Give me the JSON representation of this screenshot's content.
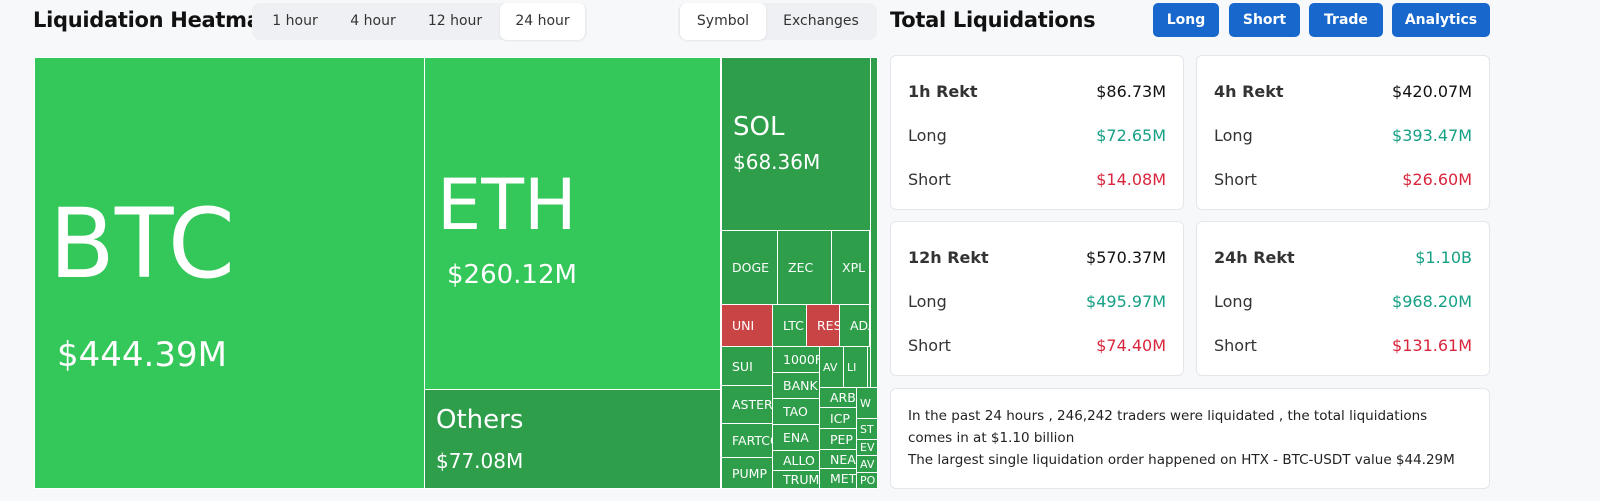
{
  "header": {
    "title": "Liquidation Heatmap",
    "time_tabs": [
      "1 hour",
      "4 hour",
      "12 hour",
      "24 hour"
    ],
    "view_tabs": [
      "Symbol",
      "Exchanges"
    ]
  },
  "heatmap": {
    "tiles": [
      {
        "symbol": "BTC",
        "value": "$444.39M"
      },
      {
        "symbol": "ETH",
        "value": "$260.12M"
      },
      {
        "symbol": "Others",
        "value": "$77.08M"
      },
      {
        "symbol": "SOL",
        "value": "$68.36M"
      },
      {
        "symbol": "DOGE"
      },
      {
        "symbol": "ZEC"
      },
      {
        "symbol": "XPL"
      },
      {
        "symbol": "UNI"
      },
      {
        "symbol": "LTC"
      },
      {
        "symbol": "RES"
      },
      {
        "symbol": "ADA"
      },
      {
        "symbol": "SUI"
      },
      {
        "symbol": "1000F"
      },
      {
        "symbol": "AV"
      },
      {
        "symbol": "LI"
      },
      {
        "symbol": "BANK"
      },
      {
        "symbol": "ASTER"
      },
      {
        "symbol": "TAO"
      },
      {
        "symbol": "ARB"
      },
      {
        "symbol": "W"
      },
      {
        "symbol": "ICP"
      },
      {
        "symbol": "ST"
      },
      {
        "symbol": "FARTCO"
      },
      {
        "symbol": "ENA"
      },
      {
        "symbol": "PEP"
      },
      {
        "symbol": "EV"
      },
      {
        "symbol": "ALLO"
      },
      {
        "symbol": "NEA"
      },
      {
        "symbol": "AV"
      },
      {
        "symbol": "PUMP"
      },
      {
        "symbol": "TRUM"
      },
      {
        "symbol": "MET"
      },
      {
        "symbol": "PO"
      }
    ]
  },
  "totals": {
    "title": "Total Liquidations",
    "buttons": [
      "Long",
      "Short",
      "Trade",
      "Analytics"
    ],
    "cards": [
      {
        "period": "1h Rekt",
        "total": "$86.73M",
        "rows": [
          {
            "label": "Long",
            "value": "$72.65M"
          },
          {
            "label": "Short",
            "value": "$14.08M"
          }
        ]
      },
      {
        "period": "4h Rekt",
        "total": "$420.07M",
        "rows": [
          {
            "label": "Long",
            "value": "$393.47M"
          },
          {
            "label": "Short",
            "value": "$26.60M"
          }
        ]
      },
      {
        "period": "12h Rekt",
        "total": "$570.37M",
        "rows": [
          {
            "label": "Long",
            "value": "$495.97M"
          },
          {
            "label": "Short",
            "value": "$74.40M"
          }
        ]
      },
      {
        "period": "24h Rekt",
        "total": "$1.10B",
        "rows": [
          {
            "label": "Long",
            "value": "$968.20M"
          },
          {
            "label": "Short",
            "value": "$131.61M"
          }
        ]
      }
    ],
    "summary": [
      "In the past 24 hours , 246,242 traders were liquidated , the total liquidations comes in at $1.10 billion",
      "The largest single liquidation order happened on HTX - BTC-USDT value $44.29M"
    ]
  }
}
